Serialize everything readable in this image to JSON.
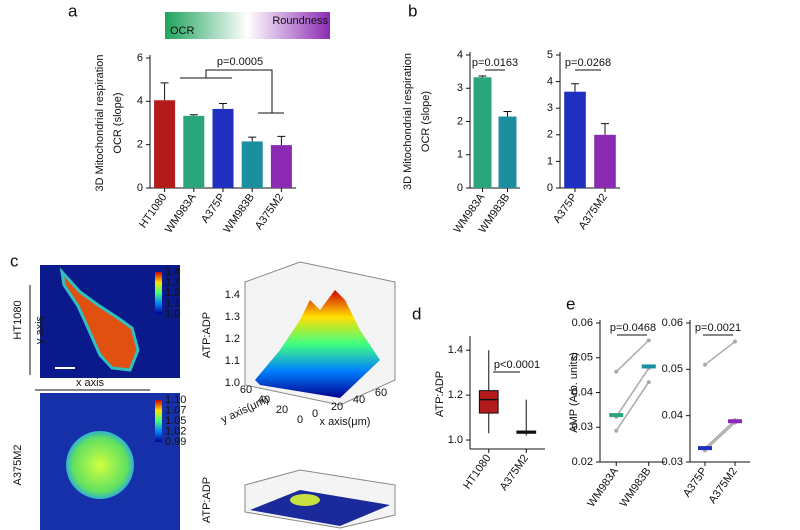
{
  "chart_data": [
    {
      "type": "bar",
      "panel_label": "a",
      "gradient_labels": [
        "OCR",
        "Roundness"
      ],
      "ylabel": [
        "3D Mitochondrial respiration",
        "OCR (slope)"
      ],
      "categories": [
        "HT1080",
        "WM983A",
        "A375P",
        "WM983B",
        "A375M2"
      ],
      "values": [
        4.05,
        3.33,
        3.65,
        2.15,
        1.98
      ],
      "errors": [
        0.8,
        0.05,
        0.25,
        0.2,
        0.4
      ],
      "colors": [
        "#b31b1b",
        "#2aa67a",
        "#1f2fbf",
        "#1b8fa0",
        "#8b2bb3"
      ],
      "ylim": [
        0,
        6
      ],
      "yticks": [
        0,
        2,
        4,
        6
      ],
      "annotation": "p=0.0005"
    },
    {
      "type": "bar",
      "panel_label": "b",
      "ylabel": [
        "3D Mitochondrial respiration",
        "OCR (slope)"
      ],
      "categories": [
        "WM983A",
        "WM983B"
      ],
      "values": [
        3.33,
        2.15
      ],
      "errors": [
        0.04,
        0.15
      ],
      "colors": [
        "#2aa67a",
        "#1b8fa0"
      ],
      "ylim": [
        0,
        4
      ],
      "yticks": [
        0,
        1,
        2,
        3,
        4
      ],
      "annotation": "p=0.0163"
    },
    {
      "type": "bar",
      "categories": [
        "A375P",
        "A375M2"
      ],
      "values": [
        3.62,
        2.0
      ],
      "errors": [
        0.3,
        0.42
      ],
      "colors": [
        "#1f2fbf",
        "#8b2bb3"
      ],
      "ylim": [
        0,
        5
      ],
      "yticks": [
        0,
        1,
        2,
        3,
        4,
        5
      ],
      "annotation": "p=0.0268"
    },
    {
      "type": "box",
      "panel_label": "d",
      "ylabel": [
        "ATP:ADP"
      ],
      "categories": [
        "HT1080",
        "A375M2"
      ],
      "boxes": [
        {
          "whislo": 1.03,
          "q1": 1.12,
          "med": 1.18,
          "q3": 1.22,
          "whishi": 1.4
        },
        {
          "whislo": 1.02,
          "q1": 1.03,
          "med": 1.035,
          "q3": 1.04,
          "whishi": 1.18
        }
      ],
      "colors": [
        "#b31b1b",
        "#8b1b1b"
      ],
      "ylim": [
        0.96,
        1.45
      ],
      "yticks": [
        {
          "value": 1,
          "label": "1.0"
        },
        {
          "value": 1.2,
          "label": "1.2"
        },
        {
          "value": 1.4,
          "label": "1.4"
        }
      ],
      "annotation": "p<0.0001"
    },
    {
      "type": "paired",
      "panel_label": "e",
      "ylabel": [
        "AMP (Arb. units)"
      ],
      "categories": [
        "WM983A",
        "WM983B"
      ],
      "series": [
        {
          "values": [
            0.046,
            0.055
          ]
        },
        {
          "values": [
            0.033,
            0.047
          ]
        },
        {
          "values": [
            0.029,
            0.043
          ]
        }
      ],
      "means": [
        0.0335,
        0.0475
      ],
      "colors": [
        "#2aa67a",
        "#1b8fa0"
      ],
      "line_color": "#aaaaaa",
      "ylim": [
        0.02,
        0.06
      ],
      "yticks": [
        0.02,
        0.03,
        0.04,
        0.05,
        0.06
      ],
      "annotation": "p=0.0468"
    },
    {
      "type": "paired",
      "categories": [
        "A375P",
        "A375M2"
      ],
      "series": [
        {
          "values": [
            0.051,
            0.056
          ]
        },
        {
          "values": [
            0.033,
            0.039
          ]
        },
        {
          "values": [
            0.0325,
            0.0385
          ]
        }
      ],
      "means": [
        0.033,
        0.0388
      ],
      "colors": [
        "#1f2fbf",
        "#8b2bb3"
      ],
      "line_color": "#aaaaaa",
      "ylim": [
        0.03,
        0.06
      ],
      "yticks": [
        0.03,
        0.04,
        0.05,
        0.06
      ],
      "annotation": "p=0.0021"
    }
  ],
  "panel_c": {
    "label": "c",
    "rows": [
      "HT1080",
      "A375M2"
    ],
    "image_axes": [
      "y axis",
      "x axis"
    ],
    "colorbars": [
      [
        "1.4",
        "1.3",
        "1.2",
        "1.1",
        "1.0"
      ],
      [
        "1.10",
        "1.07",
        "1.05",
        "1.02",
        "0.99"
      ]
    ],
    "surface_zlabel": "ATP:ADP",
    "surface_zticks": [
      "1.4",
      "1.3",
      "1.2",
      "1.1",
      "1.0"
    ],
    "surface_xlabel": "x axis(μm)",
    "surface_ylabel": "y axis(μm)",
    "surface_ticks": [
      "0",
      "20",
      "40",
      "60"
    ]
  }
}
